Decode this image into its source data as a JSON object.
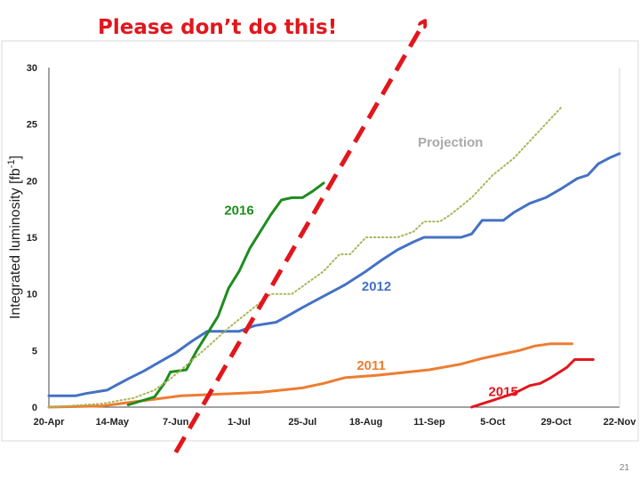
{
  "slide": {
    "title": "Please don’t do this!",
    "page_number": "21"
  },
  "chart_data": {
    "type": "line",
    "title": "",
    "xlabel": "",
    "ylabel": "Integrated luminosity [fb-1]",
    "ylim": [
      0,
      30
    ],
    "yticks": [
      0,
      5,
      10,
      15,
      20,
      25,
      30
    ],
    "xrange_days": [
      0,
      216
    ],
    "xticks": [
      {
        "label": "20-Apr",
        "day": 0
      },
      {
        "label": "14-May",
        "day": 24
      },
      {
        "label": "7-Jun",
        "day": 48
      },
      {
        "label": "1-Jul",
        "day": 72
      },
      {
        "label": "25-Jul",
        "day": 96
      },
      {
        "label": "18-Aug",
        "day": 120
      },
      {
        "label": "11-Sep",
        "day": 144
      },
      {
        "label": "5-Oct",
        "day": 168
      },
      {
        "label": "29-Oct",
        "day": 192
      },
      {
        "label": "22-Nov",
        "day": 216
      }
    ],
    "grid": false,
    "legend": "none",
    "series": [
      {
        "name": "2012",
        "color": "#4472c4",
        "style": "solid",
        "points": [
          [
            0,
            1
          ],
          [
            10,
            1
          ],
          [
            14,
            1.2
          ],
          [
            22,
            1.5
          ],
          [
            26,
            2
          ],
          [
            30,
            2.5
          ],
          [
            36,
            3.2
          ],
          [
            42,
            4
          ],
          [
            48,
            4.8
          ],
          [
            54,
            5.8
          ],
          [
            60,
            6.7
          ],
          [
            72,
            6.7
          ],
          [
            78,
            7.2
          ],
          [
            86,
            7.5
          ],
          [
            90,
            8
          ],
          [
            96,
            8.8
          ],
          [
            104,
            9.8
          ],
          [
            112,
            10.8
          ],
          [
            120,
            12
          ],
          [
            126,
            13
          ],
          [
            132,
            13.9
          ],
          [
            138,
            14.6
          ],
          [
            142,
            15
          ],
          [
            156,
            15
          ],
          [
            160,
            15.3
          ],
          [
            164,
            16.5
          ],
          [
            172,
            16.5
          ],
          [
            176,
            17.2
          ],
          [
            182,
            18
          ],
          [
            188,
            18.5
          ],
          [
            194,
            19.3
          ],
          [
            200,
            20.2
          ],
          [
            204,
            20.5
          ],
          [
            208,
            21.5
          ],
          [
            212,
            22
          ],
          [
            216,
            22.4
          ]
        ]
      },
      {
        "name": "2011",
        "color": "#ed7d31",
        "style": "solid",
        "points": [
          [
            0,
            0
          ],
          [
            20,
            0.1
          ],
          [
            30,
            0.4
          ],
          [
            40,
            0.7
          ],
          [
            50,
            1
          ],
          [
            60,
            1.1
          ],
          [
            80,
            1.3
          ],
          [
            96,
            1.7
          ],
          [
            104,
            2.1
          ],
          [
            112,
            2.6
          ],
          [
            124,
            2.8
          ],
          [
            136,
            3.1
          ],
          [
            144,
            3.3
          ],
          [
            156,
            3.8
          ],
          [
            164,
            4.3
          ],
          [
            170,
            4.6
          ],
          [
            178,
            5
          ],
          [
            184,
            5.4
          ],
          [
            190,
            5.6
          ],
          [
            198,
            5.6
          ]
        ]
      },
      {
        "name": "2015",
        "color": "#e3161c",
        "style": "solid",
        "points": [
          [
            160,
            0
          ],
          [
            164,
            0.3
          ],
          [
            168,
            0.6
          ],
          [
            172,
            0.9
          ],
          [
            176,
            1.2
          ],
          [
            182,
            1.9
          ],
          [
            186,
            2.1
          ],
          [
            190,
            2.6
          ],
          [
            196,
            3.5
          ],
          [
            199,
            4.2
          ],
          [
            206,
            4.2
          ]
        ]
      },
      {
        "name": "2016",
        "color": "#1e8c1e",
        "style": "solid",
        "points": [
          [
            30,
            0.2
          ],
          [
            40,
            0.9
          ],
          [
            44,
            2.2
          ],
          [
            46,
            3.1
          ],
          [
            52,
            3.3
          ],
          [
            56,
            5
          ],
          [
            60,
            6.5
          ],
          [
            64,
            8
          ],
          [
            68,
            10.5
          ],
          [
            72,
            12
          ],
          [
            76,
            14
          ],
          [
            80,
            15.5
          ],
          [
            84,
            17
          ],
          [
            88,
            18.3
          ],
          [
            92,
            18.5
          ],
          [
            96,
            18.5
          ],
          [
            100,
            19.1
          ],
          [
            104,
            19.8
          ]
        ]
      },
      {
        "name": "Projection",
        "color": "#a9b65a",
        "style": "dotted",
        "points": [
          [
            0,
            0
          ],
          [
            20,
            0.3
          ],
          [
            32,
            0.8
          ],
          [
            40,
            1.5
          ],
          [
            46,
            2.5
          ],
          [
            52,
            3.7
          ],
          [
            60,
            5.3
          ],
          [
            68,
            7
          ],
          [
            76,
            8.5
          ],
          [
            84,
            10
          ],
          [
            92,
            10
          ],
          [
            98,
            11
          ],
          [
            104,
            12
          ],
          [
            110,
            13.5
          ],
          [
            114,
            13.5
          ],
          [
            120,
            15
          ],
          [
            132,
            15
          ],
          [
            138,
            15.5
          ],
          [
            142,
            16.4
          ],
          [
            148,
            16.4
          ],
          [
            152,
            17
          ],
          [
            160,
            18.5
          ],
          [
            168,
            20.5
          ],
          [
            176,
            22
          ],
          [
            184,
            24
          ],
          [
            190,
            25.5
          ],
          [
            194,
            26.5
          ]
        ]
      },
      {
        "name": "",
        "color": "#e3161c",
        "style": "dashed-arrow",
        "points": [
          [
            48,
            -4
          ],
          [
            142,
            34
          ]
        ]
      }
    ],
    "series_labels": [
      {
        "text": "Projection",
        "color": "#a9a9a9",
        "at": [
          152,
          23
        ]
      },
      {
        "text": "2016",
        "color": "#1e8c1e",
        "at": [
          72,
          17
        ]
      },
      {
        "text": "2012",
        "color": "#4472c4",
        "at": [
          124,
          10.3
        ]
      },
      {
        "text": "2011",
        "color": "#ed7d31",
        "at": [
          122,
          3.3
        ]
      },
      {
        "text": "2015",
        "color": "#e3161c",
        "at": [
          172,
          1
        ]
      }
    ]
  }
}
